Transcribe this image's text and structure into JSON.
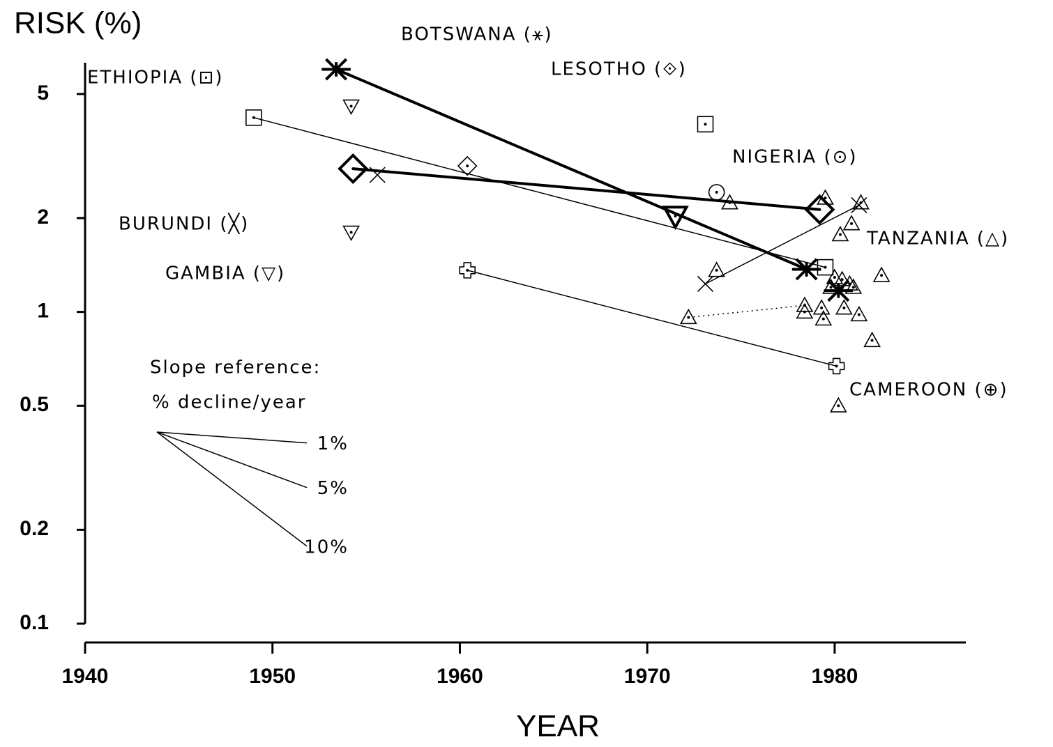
{
  "chart_data": {
    "type": "scatter",
    "y_label": "RISK (%)",
    "x_label": "YEAR",
    "xlim": [
      1940,
      1987
    ],
    "xticks": [
      1940,
      1950,
      1960,
      1970,
      1980
    ],
    "ylim": [
      0.1,
      6.3
    ],
    "yticks": [
      0.1,
      0.2,
      0.5,
      1,
      2,
      5
    ],
    "log_y": true,
    "series": [
      {
        "name": "ETHIOPIA (⊡)",
        "marker": "square-dot",
        "x": [
          1949.0,
          1973.1,
          1979.5
        ],
        "values": [
          4.2,
          4.0,
          1.39
        ],
        "bold": [],
        "links": [
          {
            "from": 0,
            "to": 2,
            "style": "thin"
          }
        ]
      },
      {
        "name": "BOTSWANA (⚹)",
        "marker": "asterisk",
        "x": [
          1953.4,
          1978.5,
          1980.2
        ],
        "values": [
          6.0,
          1.37,
          1.17
        ],
        "bold": [
          0,
          1,
          2
        ],
        "links": [
          {
            "from": 0,
            "to": 1,
            "style": "bold"
          }
        ]
      },
      {
        "name": "LESOTHO (⟐)",
        "marker": "diamond-dot",
        "x": [
          1954.3,
          1960.4,
          1979.2
        ],
        "values": [
          2.88,
          2.94,
          2.13
        ],
        "bold": [
          0,
          2
        ],
        "links": [
          {
            "from": 0,
            "to": 2,
            "style": "bold"
          }
        ]
      },
      {
        "name": "NIGERIA (⊙)",
        "marker": "circle-dot",
        "x": [
          1973.7
        ],
        "values": [
          2.42
        ],
        "bold": [],
        "links": []
      },
      {
        "name": "BURUNDI (╳)",
        "marker": "x",
        "x": [
          1955.6,
          1973.1,
          1981.3
        ],
        "values": [
          2.75,
          1.23,
          2.2
        ],
        "bold": [],
        "links": [
          {
            "from": 1,
            "to": 2,
            "style": "thin"
          }
        ]
      },
      {
        "name": "GAMBIA (▽)",
        "marker": "triangle-down-dot",
        "x": [
          1954.2,
          1954.2,
          1971.5
        ],
        "values": [
          4.57,
          1.8,
          2.03
        ],
        "bold": [
          2
        ],
        "links": []
      },
      {
        "name": "TANZANIA (△)",
        "marker": "triangle-dot",
        "x": [
          1974.4,
          1973.7,
          1972.2,
          1979.5,
          1981.4,
          1980.9,
          1980.3,
          1982.5,
          1980.0,
          1980.4,
          1980.8,
          1979.8,
          1981.0,
          1978.4,
          1979.3,
          1978.4,
          1980.5,
          1981.3,
          1979.4,
          1982.0,
          1980.2
        ],
        "values": [
          2.24,
          1.36,
          0.96,
          2.32,
          2.24,
          1.92,
          1.77,
          1.31,
          1.29,
          1.27,
          1.23,
          1.2,
          1.2,
          1.05,
          1.03,
          1.0,
          1.03,
          0.98,
          0.95,
          0.81,
          0.5
        ],
        "bold": [],
        "links": [
          {
            "from": 2,
            "to": 13,
            "style": "dotted"
          }
        ]
      },
      {
        "name": "CAMEROON (⊕)",
        "marker": "cross-square",
        "x": [
          1960.4,
          1980.1
        ],
        "values": [
          1.36,
          0.67
        ],
        "bold": [],
        "links": [
          {
            "from": 0,
            "to": 1,
            "style": "thin"
          }
        ]
      }
    ],
    "slope_reference": {
      "title": "Slope reference:",
      "subtitle": "% decline/year",
      "rates": [
        1,
        5,
        10
      ],
      "value_labels": [
        "1%",
        "5%",
        "10%"
      ]
    }
  }
}
